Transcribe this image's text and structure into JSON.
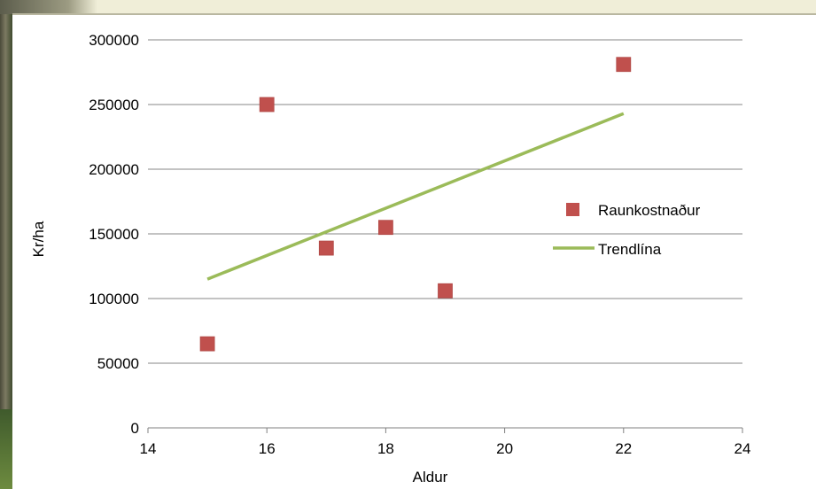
{
  "chart_data": {
    "type": "scatter",
    "title": "",
    "xlabel": "Aldur",
    "ylabel": "Kr/ha",
    "xlim": [
      14,
      24
    ],
    "ylim": [
      0,
      300000
    ],
    "x_ticks": [
      14,
      16,
      18,
      20,
      22,
      24
    ],
    "y_ticks": [
      0,
      50000,
      100000,
      150000,
      200000,
      250000,
      300000
    ],
    "grid": "horizontal",
    "legend_position": "right",
    "series": [
      {
        "name": "Raunkostnaður",
        "kind": "marker",
        "marker": "square",
        "color": "#c0504d",
        "points": [
          {
            "x": 15,
            "y": 65000
          },
          {
            "x": 16,
            "y": 250000
          },
          {
            "x": 17,
            "y": 139000
          },
          {
            "x": 18,
            "y": 155000
          },
          {
            "x": 19,
            "y": 106000
          },
          {
            "x": 22,
            "y": 281000
          }
        ]
      },
      {
        "name": "Trendlína",
        "kind": "line",
        "color": "#9bbb59",
        "points": [
          {
            "x": 15,
            "y": 115000
          },
          {
            "x": 22,
            "y": 243000
          }
        ]
      }
    ]
  }
}
